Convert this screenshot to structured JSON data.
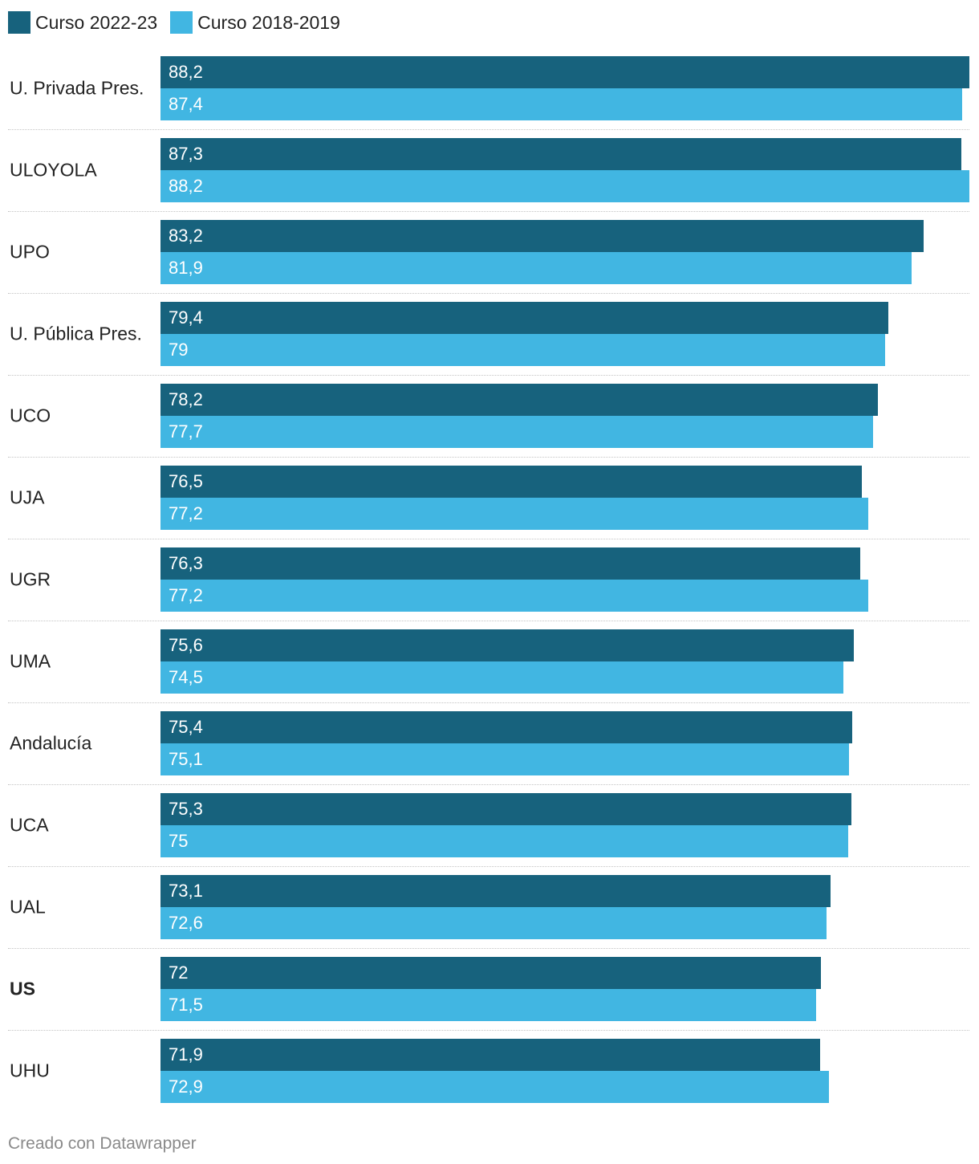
{
  "chart_data": {
    "type": "bar",
    "orientation": "horizontal",
    "title": "",
    "xlabel": "",
    "ylabel": "",
    "xlim": [
      0,
      88.2
    ],
    "grid": false,
    "legend_position": "top-left",
    "categories": [
      "U. Privada Pres.",
      "ULOYOLA",
      "UPO",
      "U. Pública Pres.",
      "UCO",
      "UJA",
      "UGR",
      "UMA",
      "Andalucía",
      "UCA",
      "UAL",
      "US",
      "UHU"
    ],
    "bold_categories": [
      "US"
    ],
    "series": [
      {
        "name": "Curso 2022-23",
        "color": "#17627d",
        "values": [
          88.2,
          87.3,
          83.2,
          79.4,
          78.2,
          76.5,
          76.3,
          75.6,
          75.4,
          75.3,
          73.1,
          72,
          71.9
        ],
        "labels": [
          "88,2",
          "87,3",
          "83,2",
          "79,4",
          "78,2",
          "76,5",
          "76,3",
          "75,6",
          "75,4",
          "75,3",
          "73,1",
          "72",
          "71,9"
        ]
      },
      {
        "name": "Curso 2018-2019",
        "color": "#41b6e2",
        "values": [
          87.4,
          88.2,
          81.9,
          79,
          77.7,
          77.2,
          77.2,
          74.5,
          75.1,
          75,
          72.6,
          71.5,
          72.9
        ],
        "labels": [
          "87,4",
          "88,2",
          "81,9",
          "79",
          "77,7",
          "77,2",
          "77,2",
          "74,5",
          "75,1",
          "75",
          "72,6",
          "71,5",
          "72,9"
        ]
      }
    ]
  },
  "footer": {
    "credit": "Creado con Datawrapper"
  }
}
